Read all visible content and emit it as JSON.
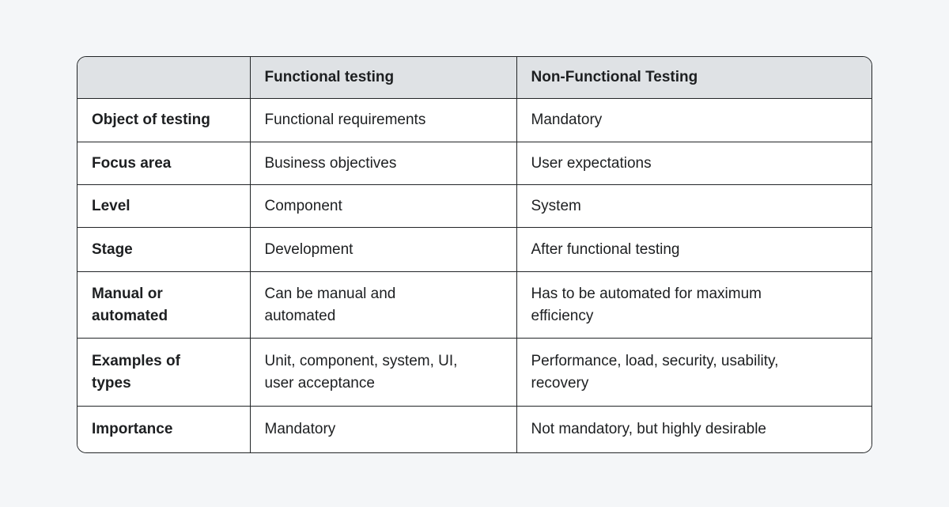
{
  "colors": {
    "page_bg": "#f4f6f8",
    "header_bg": "#dfe2e5",
    "cell_bg": "#ffffff",
    "border": "#222527",
    "text": "#1d1f21"
  },
  "chart_data": {
    "type": "table",
    "columns": [
      "",
      "Functional testing",
      "Non-Functional Testing"
    ],
    "rows": [
      [
        "Object of testing",
        "Functional requirements",
        "Mandatory"
      ],
      [
        "Focus area",
        "Business objectives",
        "User expectations"
      ],
      [
        "Level",
        "Component",
        "System"
      ],
      [
        "Stage",
        "Development",
        "After functional testing"
      ],
      [
        "Manual or\nautomated",
        "Can be manual and\nautomated",
        "Has to be automated for maximum\nefficiency"
      ],
      [
        "Examples of\ntypes",
        "Unit, component, system, UI,\nuser acceptance",
        "Performance, load, security, usability,\nrecovery"
      ],
      [
        "Importance",
        "Mandatory",
        "Not mandatory, but highly desirable"
      ]
    ]
  }
}
